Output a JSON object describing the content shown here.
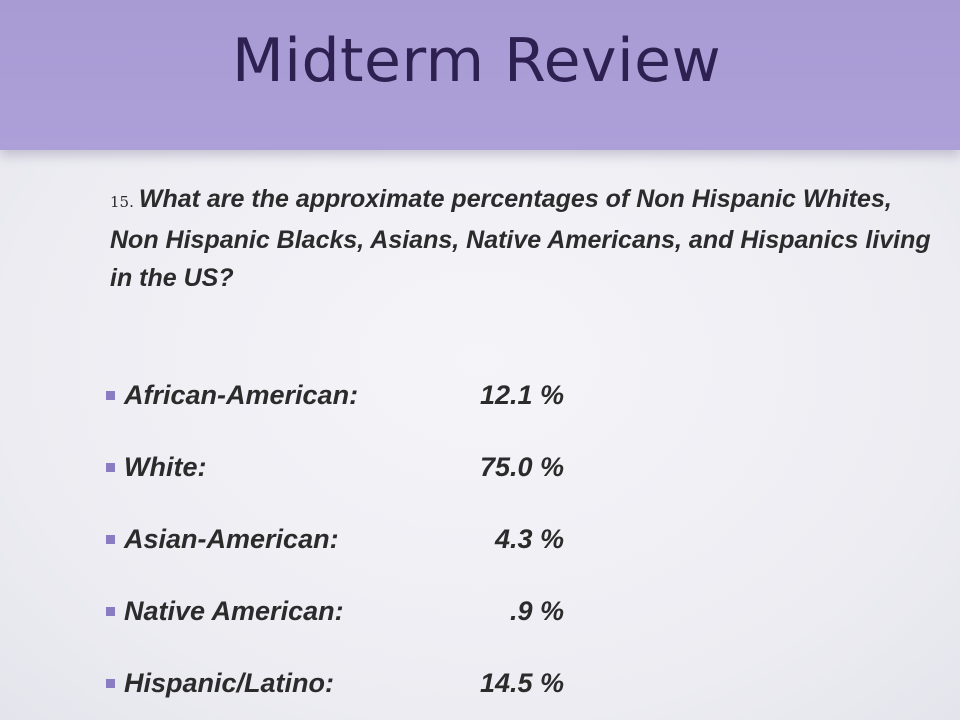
{
  "slide": {
    "title": "Midterm Review",
    "question_number": "15.",
    "question_text": "What are the approximate percentages of Non Hispanic Whites, Non Hispanic Blacks, Asians, Native Americans, and Hispanics living in the US?",
    "bullet_icon": "square-bullet-icon",
    "accent_color": "#a89bd4",
    "stats": [
      {
        "label": "African-American:",
        "value": "12.1 %"
      },
      {
        "label": "White:",
        "value": "75.0 %"
      },
      {
        "label": "Asian-American:",
        "value": "4.3 %"
      },
      {
        "label": "Native American:",
        "value": ".9 %"
      },
      {
        "label": "Hispanic/Latino:",
        "value": "14.5 %"
      }
    ]
  }
}
